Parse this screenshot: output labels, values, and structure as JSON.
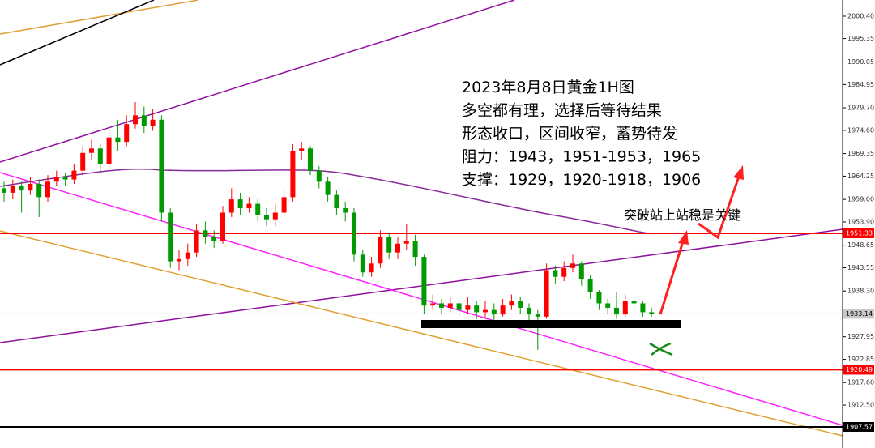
{
  "chart_data": {
    "type": "candlestick",
    "ylim": [
      1902.81,
      2004.06
    ],
    "yticks": [
      {
        "value": 2000.4,
        "label": "2000.40"
      },
      1995.35,
      1990.05,
      1984.95,
      {
        "value": 1979.7,
        "label": "1979.70"
      },
      {
        "value": 1974.6,
        "label": "1974.60"
      },
      1969.35,
      1964.25,
      {
        "value": 1959,
        "label": "1959.00"
      },
      {
        "value": 1953.9,
        "label": "1953.90"
      },
      1948.65,
      1943.55,
      {
        "value": 1938.3,
        "label": "1938.30"
      },
      1927.95,
      1922.85,
      {
        "value": 1917.6,
        "label": "1917.60"
      },
      {
        "value": 1912.5,
        "label": "1912.50"
      }
    ],
    "up_color": "#ff0000",
    "down_color": "#009a00",
    "ohlc": [
      [
        1961.5,
        1963,
        1958.5,
        1960.5
      ],
      [
        1960.5,
        1963.5,
        1959,
        1962
      ],
      [
        1962,
        1963,
        1956,
        1961
      ],
      [
        1961,
        1964,
        1960,
        1962.5
      ],
      [
        1962.5,
        1963.5,
        1955,
        1959.5
      ],
      [
        1959.5,
        1964.5,
        1958.5,
        1963
      ],
      [
        1963,
        1965.5,
        1962,
        1964
      ],
      [
        1964,
        1965,
        1962,
        1963.5
      ],
      [
        1963.5,
        1967,
        1962.5,
        1965.5
      ],
      [
        1965.5,
        1971,
        1964.5,
        1969.5
      ],
      [
        1969.5,
        1972.5,
        1968,
        1970.5
      ],
      [
        1970.5,
        1971.5,
        1965,
        1967
      ],
      [
        1967,
        1975,
        1966,
        1973
      ],
      [
        1973,
        1977,
        1970,
        1972
      ],
      [
        1972,
        1978,
        1971,
        1976
      ],
      [
        1976,
        1981,
        1975,
        1978
      ],
      [
        1978,
        1980,
        1974,
        1975.5
      ],
      [
        1975.5,
        1979.5,
        1974.5,
        1977
      ],
      [
        1977,
        1978,
        1954,
        1956
      ],
      [
        1956,
        1957,
        1943.5,
        1945
      ],
      [
        1945,
        1947.5,
        1943,
        1945.5
      ],
      [
        1945.5,
        1949,
        1944,
        1947
      ],
      [
        1947,
        1953.5,
        1946,
        1952
      ],
      [
        1952,
        1954,
        1949,
        1950.5
      ],
      [
        1950.5,
        1952,
        1948,
        1949.5
      ],
      [
        1949.5,
        1957.5,
        1949,
        1956
      ],
      [
        1956,
        1961.5,
        1955,
        1959
      ],
      [
        1959,
        1960.5,
        1955.5,
        1957
      ],
      [
        1957,
        1959.5,
        1956,
        1958
      ],
      [
        1958,
        1959,
        1954,
        1955.5
      ],
      [
        1955.5,
        1957,
        1953,
        1954.5
      ],
      [
        1954.5,
        1958,
        1953,
        1956
      ],
      [
        1956,
        1961,
        1955,
        1959.5
      ],
      [
        1959.5,
        1971.5,
        1958.5,
        1970
      ],
      [
        1970,
        1972,
        1968,
        1970.5
      ],
      [
        1970.5,
        1971,
        1964.5,
        1965.5
      ],
      [
        1965.5,
        1966.5,
        1961.5,
        1963
      ],
      [
        1963,
        1964,
        1958.5,
        1960
      ],
      [
        1960,
        1961,
        1955.5,
        1957
      ],
      [
        1957,
        1958.5,
        1954,
        1956
      ],
      [
        1956,
        1957,
        1945,
        1946.5
      ],
      [
        1946.5,
        1947.5,
        1941.5,
        1942.5
      ],
      [
        1942.5,
        1946,
        1941.5,
        1944.5
      ],
      [
        1944.5,
        1952,
        1943.5,
        1950.5
      ],
      [
        1950.5,
        1951.5,
        1945.5,
        1947
      ],
      [
        1947,
        1950.5,
        1945.5,
        1949
      ],
      [
        1949,
        1953.5,
        1947.5,
        1949.5
      ],
      [
        1949.5,
        1951,
        1944,
        1946
      ],
      [
        1946,
        1946.5,
        1933,
        1935
      ],
      [
        1935,
        1937.5,
        1934,
        1935.5
      ],
      [
        1935.5,
        1936.5,
        1933,
        1934.5
      ],
      [
        1934.5,
        1937,
        1933.5,
        1935.5
      ],
      [
        1935.5,
        1936.5,
        1932.5,
        1934
      ],
      [
        1934,
        1937,
        1933,
        1935
      ],
      [
        1935,
        1936,
        1932,
        1933.5
      ],
      [
        1933.5,
        1936,
        1932,
        1934
      ],
      [
        1934,
        1935.5,
        1931.5,
        1933
      ],
      [
        1933,
        1936.5,
        1932.5,
        1935
      ],
      [
        1935,
        1937.5,
        1934,
        1936
      ],
      [
        1936,
        1937,
        1933,
        1934.5
      ],
      [
        1934.5,
        1935.5,
        1931.5,
        1933
      ],
      [
        1933,
        1934,
        1925,
        1932.5
      ],
      [
        1932.5,
        1944.5,
        1932,
        1943
      ],
      [
        1943,
        1944,
        1940,
        1941.5
      ],
      [
        1941.5,
        1945,
        1940.5,
        1943.5
      ],
      [
        1943.5,
        1946.5,
        1942.5,
        1944.5
      ],
      [
        1944.5,
        1945,
        1939.5,
        1941
      ],
      [
        1941,
        1942,
        1936.5,
        1938
      ],
      [
        1938,
        1938.5,
        1934,
        1935.5
      ],
      [
        1935.5,
        1936.5,
        1933,
        1934.5
      ],
      [
        1934.5,
        1938,
        1932,
        1933
      ],
      [
        1933,
        1937.5,
        1932.5,
        1936
      ],
      [
        1936,
        1937,
        1934,
        1935.5
      ],
      [
        1935.5,
        1936,
        1932.5,
        1933.5
      ],
      [
        1933.5,
        1934.5,
        1932.5,
        1933.14
      ]
    ],
    "levels": [
      {
        "value": 1951.33,
        "color": "#ff0000"
      },
      {
        "value": 1933.14,
        "color": "#c8c8c8"
      },
      {
        "value": 1920.49,
        "color": "#ff0000"
      },
      {
        "value": 1907.57,
        "color": "#000000"
      }
    ],
    "annotation_lines": [
      "2023年8月8日黄金1H图",
      "多空都有理，选择后等待结果",
      "形态收口，区间收窄，蓄势待发",
      "阻力：1943，1951-1953，1965",
      "支撑：1929，1920-1918，1906"
    ],
    "note": "突破站上站稳是关键"
  }
}
